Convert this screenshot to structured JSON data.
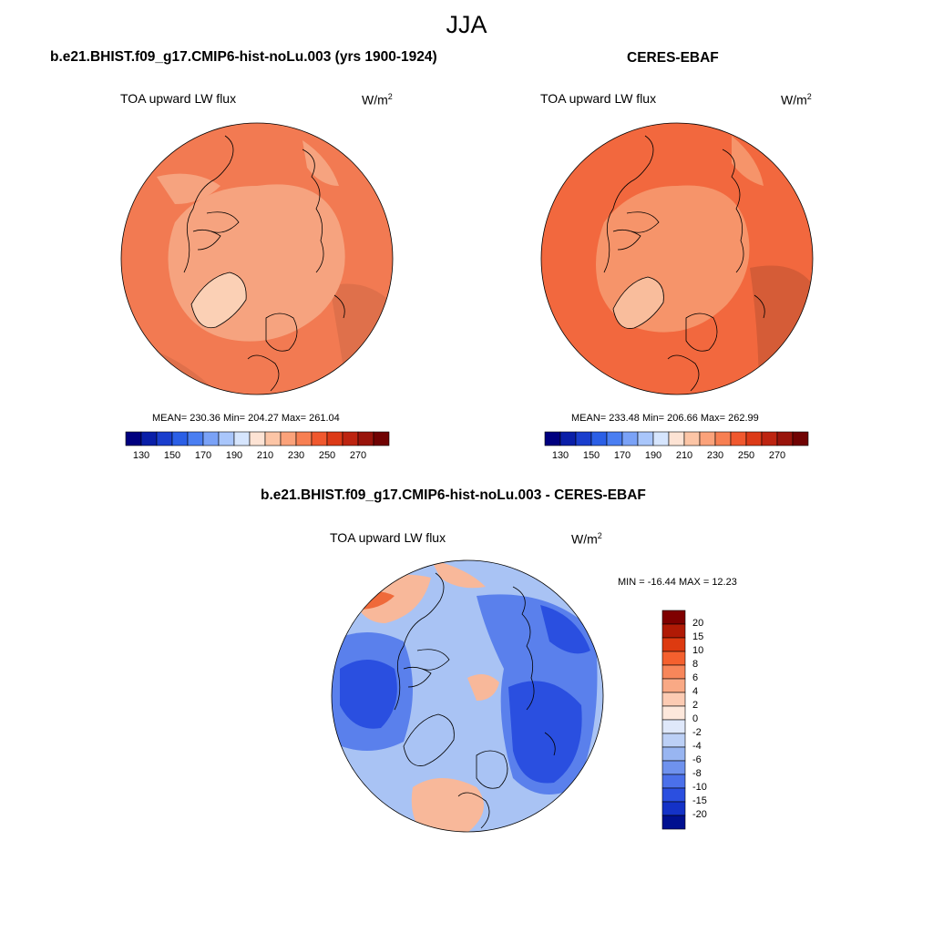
{
  "season": "JJA",
  "panels": [
    {
      "title": "b.e21.BHIST.f09_g17.CMIP6-hist-noLu.003 (yrs 1900-1924)",
      "variable": "TOA upward LW flux",
      "unit_base": "W/m",
      "unit_exp": "2",
      "stats": "MEAN= 230.36  Min= 204.27  Max= 261.04",
      "colorbar": {
        "ticks": [
          "130",
          "150",
          "170",
          "190",
          "210",
          "230",
          "250",
          "270"
        ],
        "colors": [
          "#00007f",
          "#0a1fa8",
          "#1a3ecd",
          "#2b5fe6",
          "#4a7ef2",
          "#7aa2f7",
          "#a9c6fb",
          "#d6e5fd",
          "#fde3d4",
          "#fcc5a6",
          "#fba27a",
          "#f77f52",
          "#f0582e",
          "#dc3a17",
          "#bd2410",
          "#99140b",
          "#700202"
        ]
      },
      "map": {
        "base": "#f27a52",
        "inner": "#f6a37f",
        "greenland": "#fbd0b5"
      }
    },
    {
      "title": "CERES-EBAF",
      "variable": "TOA upward LW flux",
      "unit_base": "W/m",
      "unit_exp": "2",
      "stats": "MEAN= 233.48  Min= 206.66  Max= 262.99",
      "colorbar": {
        "ticks": [
          "130",
          "150",
          "170",
          "190",
          "210",
          "230",
          "250",
          "270"
        ],
        "colors": [
          "#00007f",
          "#0a1fa8",
          "#1a3ecd",
          "#2b5fe6",
          "#4a7ef2",
          "#7aa2f7",
          "#a9c6fb",
          "#d6e5fd",
          "#fde3d4",
          "#fcc5a6",
          "#fba27a",
          "#f77f52",
          "#f0582e",
          "#dc3a17",
          "#bd2410",
          "#99140b",
          "#700202"
        ]
      },
      "map": {
        "base": "#f2683e",
        "inner": "#f6946a",
        "greenland": "#f9bd9c"
      }
    }
  ],
  "difference": {
    "title": "b.e21.BHIST.f09_g17.CMIP6-hist-noLu.003 - CERES-EBAF",
    "variable": "TOA upward LW flux",
    "unit_base": "W/m",
    "unit_exp": "2",
    "stats": "MIN = -16.44 MAX =  12.23",
    "colorbar": {
      "ticks": [
        "20",
        "15",
        "10",
        "8",
        "6",
        "4",
        "2",
        "0",
        "-2",
        "-4",
        "-6",
        "-8",
        "-10",
        "-15",
        "-20"
      ],
      "colors": [
        "#7f0000",
        "#b01a05",
        "#dd3a10",
        "#f4602e",
        "#f7865a",
        "#f9a985",
        "#fccbb3",
        "#fde8dc",
        "#dfe8fa",
        "#bcd0f6",
        "#98b5f1",
        "#6f92ee",
        "#4b70ea",
        "#2b4fe0",
        "#1432c7",
        "#001090"
      ]
    },
    "map": {
      "base": "#a9c3f4",
      "blue_deep": "#2a4fe0",
      "blue_mid": "#5a80ec",
      "warm": "#f8b89a",
      "warm_deep": "#ef6a3a"
    }
  }
}
